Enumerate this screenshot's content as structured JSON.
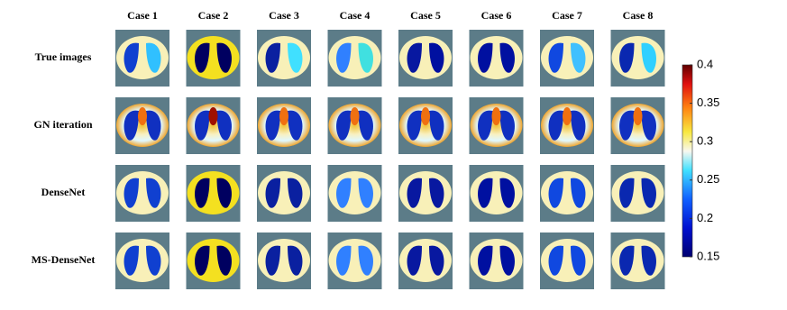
{
  "columns": [
    "Case 1",
    "Case 2",
    "Case 3",
    "Case 4",
    "Case 5",
    "Case 6",
    "Case 7",
    "Case 8"
  ],
  "rows": [
    "True images",
    "GN iteration",
    "DenseNet",
    "MS-DenseNet"
  ],
  "colorbar": {
    "lim": [
      0.15,
      0.4
    ],
    "ticks": [
      0.15,
      0.2,
      0.25,
      0.3,
      0.35,
      0.4
    ]
  }
}
